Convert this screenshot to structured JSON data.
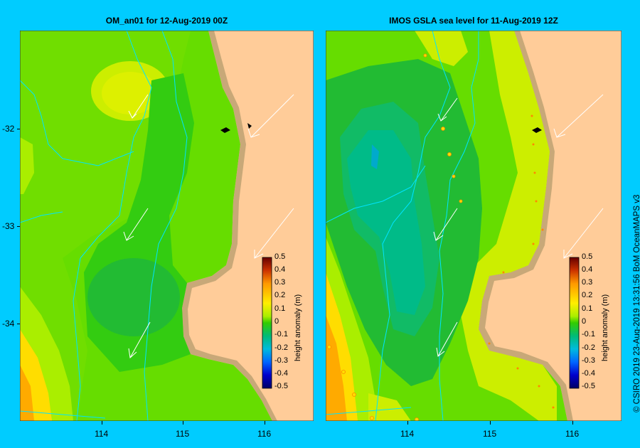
{
  "panels": [
    {
      "title": "OM_an01  for 12-Aug-2019 00Z"
    },
    {
      "title": "IMOS GSLA sea level  for 11-Aug-2019 12Z"
    }
  ],
  "lat_ticks": [
    "-32",
    "-33",
    "-34"
  ],
  "lon_ticks": [
    "114",
    "115",
    "116"
  ],
  "colorbar": {
    "label": "height anomaly (m)",
    "ticks": [
      "0.5",
      "0.4",
      "0.3",
      "0.2",
      "0.1",
      "0",
      "-0.1",
      "-0.2",
      "-0.3",
      "-0.4",
      "-0.5"
    ]
  },
  "credit": "© CSIRO 2019   23-Aug-2019 13:31:56 BoM OceanMAPS v3",
  "colors": {
    "land": "#ffcc99",
    "coast": "#c8a878",
    "background": "#00ccff",
    "bathymetry": "#00e5ff",
    "arrow": "#ffffff"
  }
}
